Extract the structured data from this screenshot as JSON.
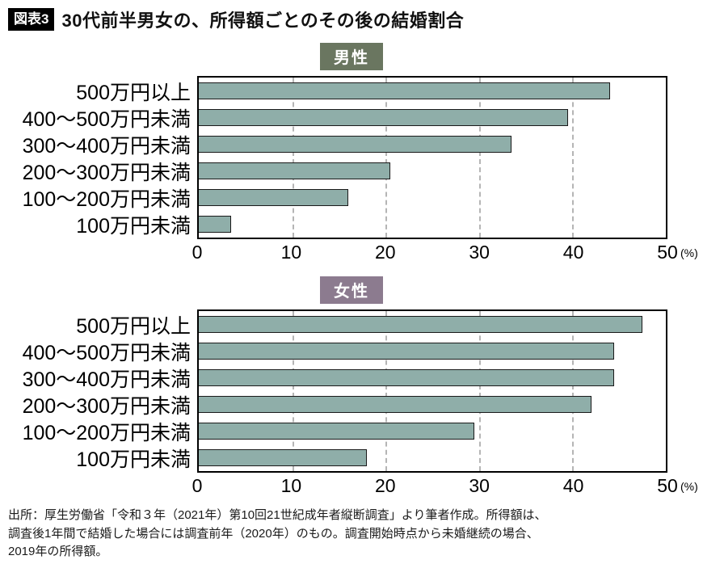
{
  "header": {
    "figure_label": "図表3",
    "title": "30代前半男女の、所得額ごとのその後の結婚割合"
  },
  "chart_data": [
    {
      "type": "bar",
      "orientation": "horizontal",
      "title": "男性",
      "title_bg": "#6A7660",
      "bar_color": "#8FAEA9",
      "categories": [
        "500万円以上",
        "400〜500万円未満",
        "300〜400万円未満",
        "200〜300万円未満",
        "100〜200万円未満",
        "100万円未満"
      ],
      "values": [
        44,
        39.5,
        33.5,
        20.5,
        16,
        3.5
      ],
      "xlim": [
        0,
        50
      ],
      "ticks": [
        0,
        10,
        20,
        30,
        40,
        50
      ],
      "unit": "(%)",
      "grid": "dashed-vertical"
    },
    {
      "type": "bar",
      "orientation": "horizontal",
      "title": "女性",
      "title_bg": "#8C7B8F",
      "bar_color": "#8FAEA9",
      "categories": [
        "500万円以上",
        "400〜500万円未満",
        "300〜400万円未満",
        "200〜300万円未満",
        "100〜200万円未満",
        "100万円未満"
      ],
      "values": [
        47.5,
        44.5,
        44.5,
        42,
        29.5,
        18
      ],
      "xlim": [
        0,
        50
      ],
      "ticks": [
        0,
        10,
        20,
        30,
        40,
        50
      ],
      "unit": "(%)",
      "grid": "dashed-vertical"
    }
  ],
  "footer": {
    "lines": [
      "出所：厚生労働省「令和３年（2021年）第10回21世紀成年者縦断調査」より筆者作成。所得額は、",
      "調査後1年間で結婚した場合には調査前年（2020年）のもの。調査開始時点から未婚継続の場合、",
      "2019年の所得額。"
    ]
  }
}
